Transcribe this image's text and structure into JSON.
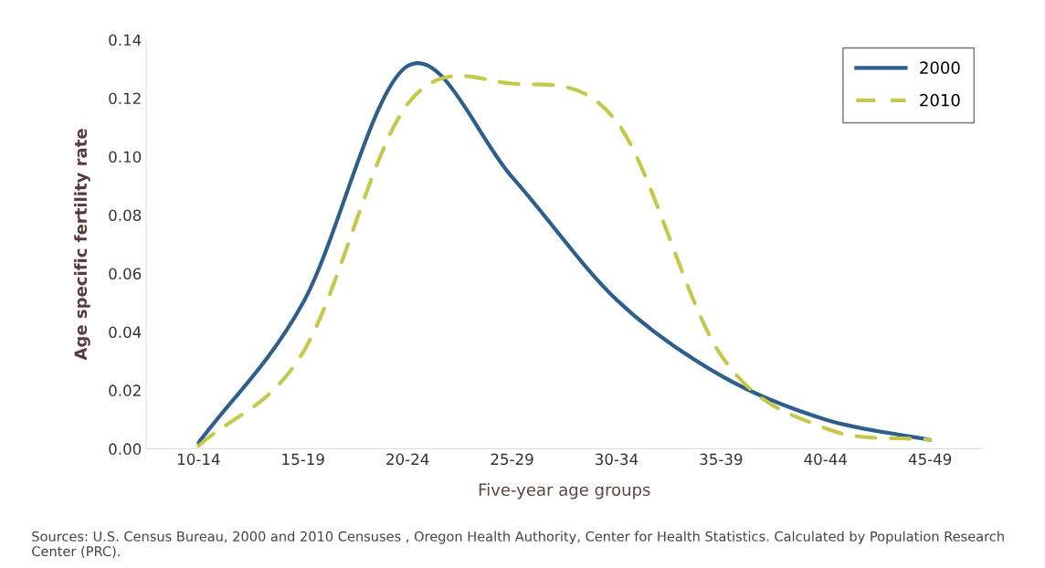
{
  "chart_data": {
    "type": "line",
    "xlabel": "Five-year age groups",
    "ylabel": "Age specific fertility rate",
    "categories": [
      "10-14",
      "15-19",
      "20-24",
      "25-29",
      "30-34",
      "35-39",
      "40-44",
      "45-49"
    ],
    "series": [
      {
        "name": "2000",
        "color": "#2e5e8c",
        "line_style": "solid",
        "values": [
          0.002,
          0.05,
          0.131,
          0.093,
          0.051,
          0.025,
          0.01,
          0.003
        ]
      },
      {
        "name": "2010",
        "color": "#c4c94c",
        "line_style": "dashed",
        "values": [
          0.001,
          0.033,
          0.118,
          0.125,
          0.112,
          0.032,
          0.007,
          0.003
        ]
      }
    ],
    "ylim": [
      0,
      0.14
    ],
    "yticks": [
      {
        "value": 0,
        "label": "0.00"
      },
      {
        "value": 0.02,
        "label": "0.02"
      },
      {
        "value": 0.04,
        "label": "0.04"
      },
      {
        "value": 0.06,
        "label": "0.06"
      },
      {
        "value": 0.08,
        "label": "0.08"
      },
      {
        "value": 0.1,
        "label": "0.10"
      },
      {
        "value": 0.12,
        "label": "0.12"
      },
      {
        "value": 0.14,
        "label": "0.14"
      }
    ],
    "grid": false,
    "legend": "top right",
    "marker": "none",
    "annotations": [
      "Sources: U.S. Census Bureau, 2000 and 2010 Censuses , Oregon Health Authority, Center for Health Statistics. Calculated by Population Research Center (PRC)."
    ]
  }
}
